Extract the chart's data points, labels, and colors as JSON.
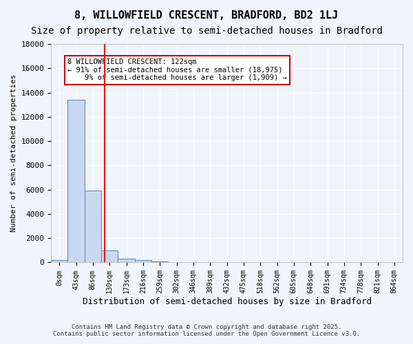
{
  "title1": "8, WILLOWFIELD CRESCENT, BRADFORD, BD2 1LJ",
  "title2": "Size of property relative to semi-detached houses in Bradford",
  "xlabel": "Distribution of semi-detached houses by size in Bradford",
  "ylabel": "Number of semi-detached properties",
  "bar_labels": [
    "0sqm",
    "43sqm",
    "86sqm",
    "130sqm",
    "173sqm",
    "216sqm",
    "259sqm",
    "302sqm",
    "346sqm",
    "389sqm",
    "432sqm",
    "475sqm",
    "518sqm",
    "562sqm",
    "605sqm",
    "648sqm",
    "691sqm",
    "734sqm",
    "778sqm",
    "821sqm",
    "864sqm"
  ],
  "bar_values": [
    200,
    13400,
    5900,
    1000,
    300,
    200,
    100,
    50,
    0,
    0,
    0,
    0,
    0,
    0,
    0,
    0,
    0,
    0,
    0,
    0,
    0
  ],
  "bar_color": "#c8d8f0",
  "bar_edge_color": "#5580b0",
  "ylim": [
    0,
    18000
  ],
  "yticks": [
    0,
    2000,
    4000,
    6000,
    8000,
    10000,
    12000,
    14000,
    16000,
    18000
  ],
  "red_line_x": 2.72,
  "annotation_text": "8 WILLOWFIELD CRESCENT: 122sqm\n← 91% of semi-detached houses are smaller (18,975)\n    9% of semi-detached houses are larger (1,909) →",
  "annotation_box_color": "#ffffff",
  "annotation_box_edge": "#cc0000",
  "footer1": "Contains HM Land Registry data © Crown copyright and database right 2025.",
  "footer2": "Contains public sector information licensed under the Open Government Licence v3.0.",
  "bg_color": "#f0f4fc",
  "grid_color": "#ffffff",
  "title1_fontsize": 11,
  "title2_fontsize": 10
}
